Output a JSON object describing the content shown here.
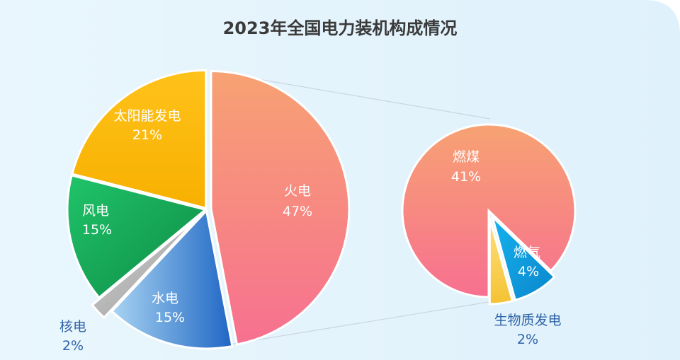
{
  "chart_data": [
    {
      "type": "pie",
      "title": "2023年全国电力装机构成情况",
      "slices": [
        {
          "label": "火电",
          "pct_label": "47%",
          "value": 47,
          "color_top": "#f7a273",
          "color_bottom": "#f77090"
        },
        {
          "label": "水电",
          "pct_label": "15%",
          "value": 15,
          "color_top": "#2f76cc",
          "color_bottom": "#a8d4f2"
        },
        {
          "label": "核电",
          "pct_label": "2%",
          "value": 2,
          "color_top": "#b3b3b3",
          "color_bottom": "#d9d9d9"
        },
        {
          "label": "风电",
          "pct_label": "15%",
          "value": 15,
          "color_top": "#1fbf63",
          "color_bottom": "#128a47"
        },
        {
          "label": "太阳能发电",
          "pct_label": "21%",
          "value": 21,
          "color_top": "#ffc21a",
          "color_bottom": "#f5ab00"
        }
      ]
    },
    {
      "type": "pie",
      "title": "",
      "slices": [
        {
          "label": "燃煤",
          "pct_label": "41%",
          "value": 41,
          "color_top": "#f7a273",
          "color_bottom": "#f77090"
        },
        {
          "label": "燃气",
          "pct_label": "4%",
          "value": 4,
          "color_top": "#12a6e6",
          "color_bottom": "#0f8fd0"
        },
        {
          "label": "生物质发电",
          "pct_label": "2%",
          "value": 2,
          "color_top": "#ffd966",
          "color_bottom": "#f5c233"
        }
      ]
    }
  ]
}
